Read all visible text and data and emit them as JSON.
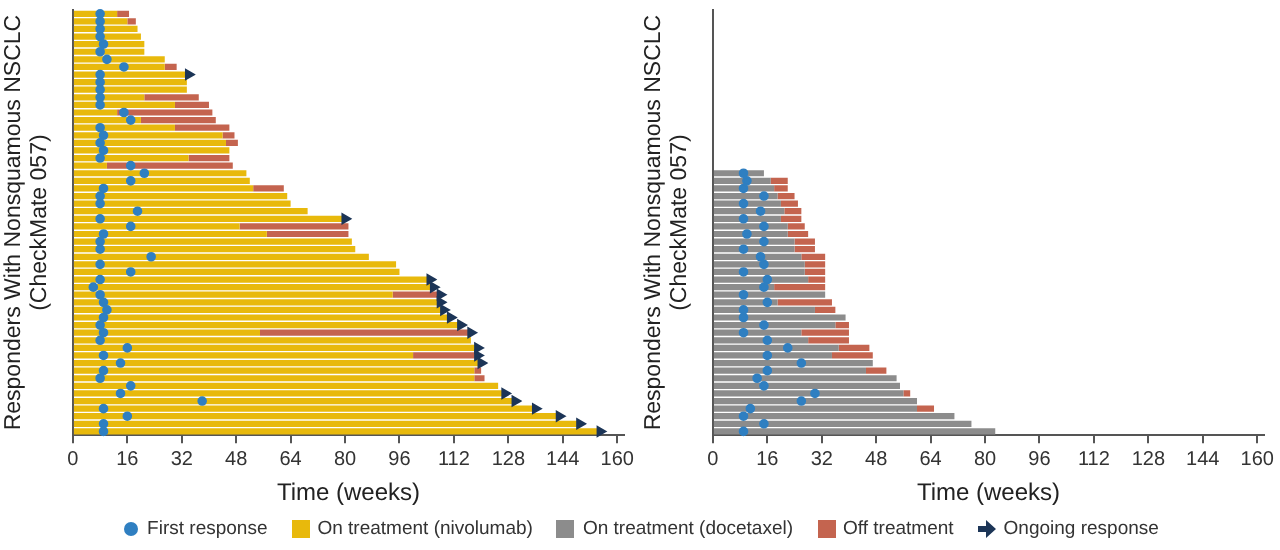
{
  "chart_data": [
    {
      "type": "bar",
      "orientation": "horizontal",
      "stacked": true,
      "xlabel": "Time (weeks)",
      "ylabel": "Responders With Nonsquamous NSCLC\n(CheckMate 057)",
      "legend": "bottom",
      "xlim": [
        0,
        162
      ],
      "xticks": [
        0,
        16,
        32,
        48,
        64,
        80,
        96,
        112,
        128,
        144,
        160
      ],
      "categories": [
        null,
        null,
        null,
        null,
        null,
        null,
        null,
        null,
        null,
        null,
        null,
        null,
        null,
        null,
        null,
        null,
        null,
        null,
        null,
        null,
        null,
        null,
        null,
        null,
        null,
        null,
        null,
        null,
        null,
        null,
        null,
        null,
        null,
        null,
        null,
        null,
        null,
        null,
        null,
        null,
        null,
        null,
        null,
        null,
        null,
        null,
        null,
        null,
        null,
        null,
        null,
        null,
        null,
        null,
        null,
        null
      ],
      "series": [
        {
          "name": "First response",
          "type": "scatter",
          "marker": "circle",
          "color": "#2f7fc1",
          "values": [
            8,
            8,
            8,
            8,
            9,
            8,
            10,
            15,
            8,
            8,
            8,
            8,
            8,
            15,
            17,
            8,
            9,
            8,
            9,
            8,
            17,
            21,
            17,
            9,
            8,
            8,
            19,
            8,
            17,
            9,
            8,
            8,
            23,
            8,
            17,
            8,
            6,
            8,
            9,
            10,
            9,
            8,
            9,
            8,
            16,
            9,
            14,
            9,
            8,
            17,
            14,
            38,
            9,
            16,
            9,
            9
          ]
        },
        {
          "name": "On treatment (nivolumab)",
          "type": "bar",
          "color": "#e8b90c",
          "values": [
            13,
            16,
            19,
            20,
            21,
            21,
            27,
            27,
            34,
            33.5,
            33.5,
            21,
            30,
            13,
            20,
            30,
            44,
            45,
            46,
            34,
            10,
            51,
            52,
            53,
            63,
            64,
            69,
            80,
            49,
            57,
            82,
            83,
            87,
            95,
            96,
            105,
            106,
            94,
            108,
            109,
            111,
            114,
            55,
            117,
            119,
            100,
            120,
            118,
            118,
            125,
            127,
            130,
            136,
            143,
            149,
            155
          ]
        },
        {
          "name": "Off treatment",
          "type": "bar",
          "color": "#c4644f",
          "values": [
            3.5,
            2.5,
            null,
            null,
            null,
            null,
            null,
            3.5,
            null,
            null,
            null,
            16,
            10,
            28,
            22,
            16,
            3.5,
            3.5,
            null,
            12,
            37,
            null,
            null,
            9,
            null,
            null,
            null,
            null,
            32,
            24,
            null,
            null,
            null,
            null,
            null,
            null,
            null,
            14,
            null,
            null,
            null,
            null,
            62,
            null,
            null,
            19,
            null,
            2,
            3,
            null,
            null,
            null,
            null,
            null,
            null,
            null
          ]
        },
        {
          "name": "Ongoing response",
          "type": "scatter",
          "marker": "triangle",
          "color": "#1c3557",
          "values": [
            null,
            null,
            null,
            null,
            null,
            null,
            null,
            null,
            34,
            null,
            null,
            null,
            null,
            null,
            null,
            null,
            null,
            null,
            null,
            null,
            null,
            null,
            null,
            null,
            null,
            null,
            null,
            80,
            null,
            null,
            null,
            null,
            null,
            null,
            null,
            105,
            106,
            108,
            108,
            109,
            111,
            114,
            117,
            null,
            119,
            119,
            120,
            null,
            null,
            null,
            127,
            130,
            136,
            143,
            149,
            155
          ]
        }
      ]
    },
    {
      "type": "bar",
      "orientation": "horizontal",
      "stacked": true,
      "xlabel": "Time (weeks)",
      "ylabel": "Responders With Nonsquamous NSCLC\n(CheckMate 057)",
      "legend": "bottom",
      "xlim": [
        0,
        162
      ],
      "xticks": [
        0,
        16,
        32,
        48,
        64,
        80,
        96,
        112,
        128,
        144,
        160
      ],
      "categories": [
        null,
        null,
        null,
        null,
        null,
        null,
        null,
        null,
        null,
        null,
        null,
        null,
        null,
        null,
        null,
        null,
        null,
        null,
        null,
        null,
        null,
        null,
        null,
        null,
        null,
        null,
        null,
        null,
        null,
        null,
        null,
        null,
        null,
        null,
        null,
        null,
        null,
        null,
        null,
        null,
        null,
        null,
        null,
        null,
        null,
        null,
        null,
        null,
        null,
        null,
        null,
        null,
        null,
        null,
        null,
        null
      ],
      "series": [
        {
          "name": "First response",
          "type": "scatter",
          "marker": "circle",
          "color": "#2f7fc1",
          "values": [
            null,
            null,
            null,
            null,
            null,
            null,
            null,
            null,
            null,
            null,
            null,
            null,
            null,
            null,
            null,
            null,
            null,
            null,
            null,
            null,
            null,
            9,
            10,
            9,
            15,
            9,
            14,
            9,
            15,
            10,
            15,
            9,
            14,
            15,
            9,
            16,
            15,
            9,
            16,
            9,
            9,
            15,
            9,
            16,
            22,
            16,
            26,
            16,
            13,
            15,
            30,
            26,
            11,
            9,
            15,
            9
          ]
        },
        {
          "name": "On treatment (docetaxel)",
          "type": "bar",
          "color": "#8c8c8c",
          "values": [
            null,
            null,
            null,
            null,
            null,
            null,
            null,
            null,
            null,
            null,
            null,
            null,
            null,
            null,
            null,
            null,
            null,
            null,
            null,
            null,
            null,
            15,
            17,
            18,
            19,
            20,
            21,
            20,
            22,
            22,
            24,
            24,
            26,
            27,
            27,
            28,
            18,
            33,
            19,
            30,
            39,
            36,
            26,
            28,
            37,
            35,
            47,
            45,
            54,
            55,
            56,
            60,
            60,
            71,
            76,
            83
          ]
        },
        {
          "name": "Off treatment",
          "type": "bar",
          "color": "#c4644f",
          "values": [
            null,
            null,
            null,
            null,
            null,
            null,
            null,
            null,
            null,
            null,
            null,
            null,
            null,
            null,
            null,
            null,
            null,
            null,
            null,
            null,
            null,
            null,
            5,
            4,
            5,
            5,
            5,
            6,
            5,
            6,
            6,
            6,
            7,
            6,
            6,
            5,
            15,
            null,
            16,
            6,
            null,
            4,
            14,
            12,
            9,
            12,
            null,
            6,
            null,
            null,
            2,
            null,
            5,
            null,
            null,
            null
          ]
        }
      ]
    }
  ]
}
